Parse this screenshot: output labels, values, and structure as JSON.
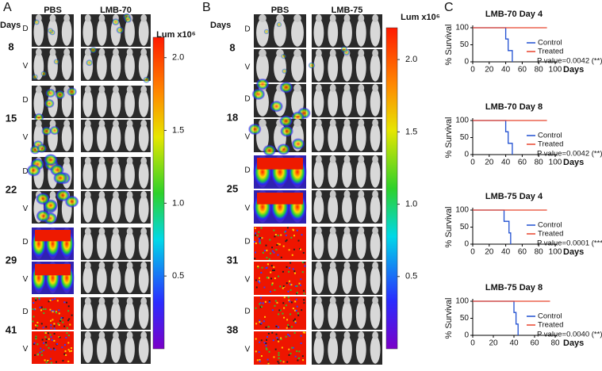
{
  "panels": [
    {
      "letter": "A",
      "days_title": "Days",
      "groups": [
        "PBS",
        "LMB-70"
      ],
      "dorsal": "D",
      "ventral": "V",
      "days": [
        "8",
        "15",
        "22",
        "29",
        "41"
      ],
      "colorbar": {
        "title": "Lum x10⁶",
        "clim": [
          0,
          2.14
        ],
        "ticks": [
          {
            "value": 0.5,
            "label": "0.5"
          },
          {
            "value": 1,
            "label": "1.0"
          },
          {
            "value": 1.5,
            "label": "1.5"
          },
          {
            "value": 2,
            "label": "2.0"
          }
        ]
      }
    },
    {
      "letter": "B",
      "days_title": "Days",
      "groups": [
        "PBS",
        "LMB-75"
      ],
      "dorsal": "D",
      "ventral": "V",
      "days": [
        "8",
        "18",
        "25",
        "31",
        "38"
      ],
      "colorbar": {
        "title": "Lum x10⁶",
        "clim": [
          0,
          2.22
        ],
        "ticks": [
          {
            "value": 0.5,
            "label": "0.5"
          },
          {
            "value": 1,
            "label": "1.0"
          },
          {
            "value": 1.5,
            "label": "1.5"
          },
          {
            "value": 2,
            "label": "2.0"
          }
        ]
      }
    }
  ],
  "panel_c": {
    "letter": "C"
  },
  "chart_data": [
    {
      "type": "step",
      "title": "LMB-70 Day 4",
      "xlabel": "Days",
      "ylabel": "% Survival",
      "xlim": [
        0,
        100
      ],
      "ylim": [
        0,
        100
      ],
      "xticks": [
        0,
        20,
        40,
        60,
        80,
        100
      ],
      "yticks": [
        0,
        50,
        100
      ],
      "annotation": "P value=0.0042 (**)",
      "series": [
        {
          "name": "Control",
          "color": "#1f4fd1",
          "x": [
            0,
            40,
            43,
            48
          ],
          "values": [
            100,
            67,
            33,
            0
          ]
        },
        {
          "name": "Treated",
          "color": "#e8432c",
          "x": [
            0,
            90
          ],
          "values": [
            100,
            100
          ]
        }
      ]
    },
    {
      "type": "step",
      "title": "LMB-70 Day 8",
      "xlabel": "Days",
      "ylabel": "% Survival",
      "xlim": [
        0,
        100
      ],
      "ylim": [
        0,
        100
      ],
      "xticks": [
        0,
        20,
        40,
        60,
        80,
        100
      ],
      "yticks": [
        0,
        50,
        100
      ],
      "annotation": "P value=0.0042 (**)",
      "series": [
        {
          "name": "Control",
          "color": "#1f4fd1",
          "x": [
            0,
            40,
            43,
            48
          ],
          "values": [
            100,
            67,
            33,
            0
          ]
        },
        {
          "name": "Treated",
          "color": "#e8432c",
          "x": [
            0,
            90
          ],
          "values": [
            100,
            100
          ]
        }
      ]
    },
    {
      "type": "step",
      "title": "LMB-75 Day 4",
      "xlabel": "Days",
      "ylabel": "% Survival",
      "xlim": [
        0,
        100
      ],
      "ylim": [
        0,
        100
      ],
      "xticks": [
        0,
        20,
        40,
        60,
        80,
        100
      ],
      "yticks": [
        0,
        50,
        100
      ],
      "annotation": "P value=0.0001 (***)",
      "series": [
        {
          "name": "Control",
          "color": "#1f4fd1",
          "x": [
            0,
            38,
            44,
            46
          ],
          "values": [
            100,
            67,
            33,
            0
          ]
        },
        {
          "name": "Treated",
          "color": "#e8432c",
          "x": [
            0,
            90
          ],
          "values": [
            100,
            100
          ]
        }
      ]
    },
    {
      "type": "step",
      "title": "LMB-75 Day 8",
      "xlabel": "Days",
      "ylabel": "% Survival",
      "xlim": [
        0,
        80
      ],
      "ylim": [
        0,
        100
      ],
      "xticks": [
        0,
        20,
        40,
        60,
        80
      ],
      "yticks": [
        0,
        50,
        100
      ],
      "annotation": "P value=0.0040 (**)",
      "series": [
        {
          "name": "Control",
          "color": "#1f4fd1",
          "x": [
            0,
            40,
            42,
            44
          ],
          "values": [
            100,
            67,
            33,
            0
          ]
        },
        {
          "name": "Treated",
          "color": "#e8432c",
          "x": [
            0,
            75
          ],
          "values": [
            100,
            100
          ]
        }
      ]
    }
  ]
}
